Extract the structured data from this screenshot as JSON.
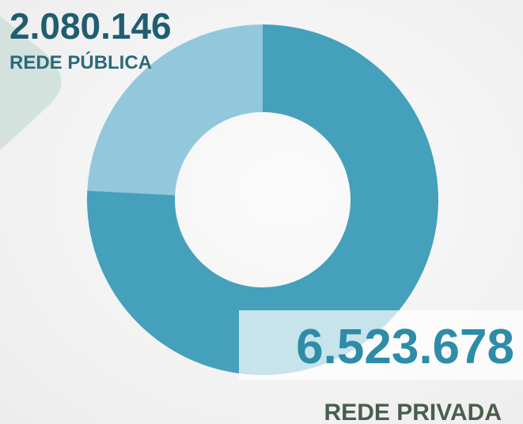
{
  "chart_data": {
    "type": "pie",
    "categories": [
      "REDE PÚBLICA",
      "REDE PRIVADA"
    ],
    "values": [
      2080146,
      6523678
    ],
    "value_labels": [
      "2.080.146",
      "6.523.678"
    ],
    "colors": [
      "#93c8dc",
      "#45a0bb"
    ]
  }
}
